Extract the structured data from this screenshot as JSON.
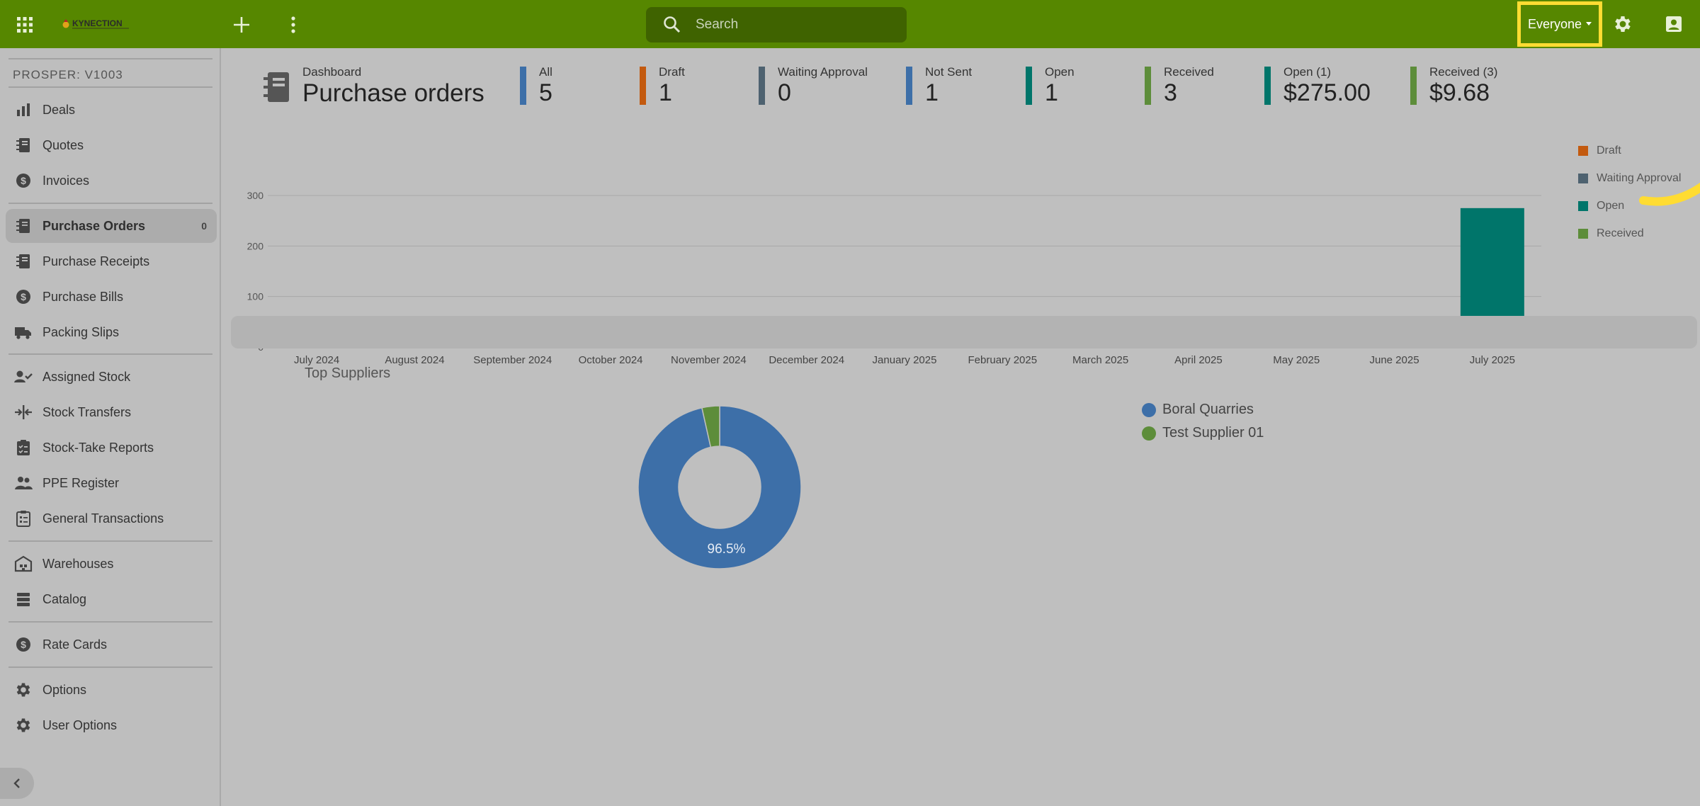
{
  "topbar": {
    "brand": "KYNECTION",
    "search_placeholder": "Search",
    "user_filter_label": "Everyone",
    "icons": [
      "apps-grid-icon",
      "plus-icon",
      "more-vert-icon",
      "search-icon",
      "gear-icon",
      "account-box-icon"
    ]
  },
  "sidebar": {
    "section_title": "PROSPER: V1003",
    "items": [
      {
        "label": "Deals",
        "icon": "bar-chart-icon"
      },
      {
        "label": "Quotes",
        "icon": "notebook-icon"
      },
      {
        "label": "Invoices",
        "icon": "dollar-circle-icon"
      },
      {
        "label": "Purchase Orders",
        "icon": "notebook-icon",
        "badge": "0",
        "active": true
      },
      {
        "label": "Purchase Receipts",
        "icon": "notebook-icon"
      },
      {
        "label": "Purchase Bills",
        "icon": "dollar-circle-icon"
      },
      {
        "label": "Packing Slips",
        "icon": "truck-icon"
      },
      {
        "label": "Assigned Stock",
        "icon": "person-check-icon"
      },
      {
        "label": "Stock Transfers",
        "icon": "transfer-icon"
      },
      {
        "label": "Stock-Take Reports",
        "icon": "clipboard-check-icon"
      },
      {
        "label": "PPE Register",
        "icon": "people-icon"
      },
      {
        "label": "General Transactions",
        "icon": "list-clipboard-icon"
      },
      {
        "label": "Warehouses",
        "icon": "warehouse-icon"
      },
      {
        "label": "Catalog",
        "icon": "stack-icon"
      },
      {
        "label": "Rate Cards",
        "icon": "dollar-circle-icon"
      },
      {
        "label": "Options",
        "icon": "gear-icon"
      },
      {
        "label": "User Options",
        "icon": "gear-icon"
      }
    ]
  },
  "header": {
    "breadcrumb": "Dashboard",
    "title": "Purchase orders"
  },
  "stats": [
    {
      "label": "All",
      "value": "5",
      "color": "#3d6fa8"
    },
    {
      "label": "Draft",
      "value": "1",
      "color": "#c35a0f"
    },
    {
      "label": "Waiting Approval",
      "value": "0",
      "color": "#4e6270"
    },
    {
      "label": "Not Sent",
      "value": "1",
      "color": "#3d6fa8"
    },
    {
      "label": "Open",
      "value": "1",
      "color": "#00756a"
    },
    {
      "label": "Received",
      "value": "3",
      "color": "#5d8d3a"
    },
    {
      "label": "Open (1)",
      "value": "$275.00",
      "color": "#00756a"
    },
    {
      "label": "Received (3)",
      "value": "$9.68",
      "color": "#5d8d3a"
    }
  ],
  "chart_data": [
    {
      "type": "bar",
      "categories": [
        "July 2024",
        "August 2024",
        "September 2024",
        "October 2024",
        "November 2024",
        "December 2024",
        "January 2025",
        "February 2025",
        "March 2025",
        "April 2025",
        "May 2025",
        "June 2025",
        "July 2025"
      ],
      "series": [
        {
          "name": "Draft",
          "color": "#c35a0f",
          "values": [
            0,
            0,
            0,
            0,
            0,
            0,
            0,
            0,
            0,
            0,
            0,
            0,
            0
          ]
        },
        {
          "name": "Waiting Approval",
          "color": "#4e6270",
          "values": [
            0,
            0,
            0,
            0,
            0,
            0,
            0,
            0,
            0,
            0,
            0,
            0,
            0
          ]
        },
        {
          "name": "Open",
          "color": "#00756a",
          "values": [
            0,
            0,
            0,
            0,
            0,
            0,
            0,
            0,
            0,
            0,
            0,
            0,
            275
          ]
        },
        {
          "name": "Received",
          "color": "#5d8d3a",
          "values": [
            0,
            0,
            0,
            0,
            0,
            0,
            0,
            0,
            0,
            9.68,
            0,
            0,
            0
          ]
        }
      ],
      "yticks": [
        0,
        100,
        200,
        300
      ],
      "ylim": [
        0,
        300
      ],
      "legend_position": "right",
      "grid": true
    },
    {
      "type": "pie",
      "title": "Top Suppliers",
      "labels": [
        "Boral Quarries",
        "Test Supplier 01"
      ],
      "values": [
        96.5,
        3.5
      ],
      "colors": [
        "#3d6fa8",
        "#5d8d3a"
      ],
      "data_labels": [
        "96.5%",
        ""
      ],
      "donut": true,
      "legend_position": "right"
    }
  ],
  "highlight_color": "#ffdc32"
}
